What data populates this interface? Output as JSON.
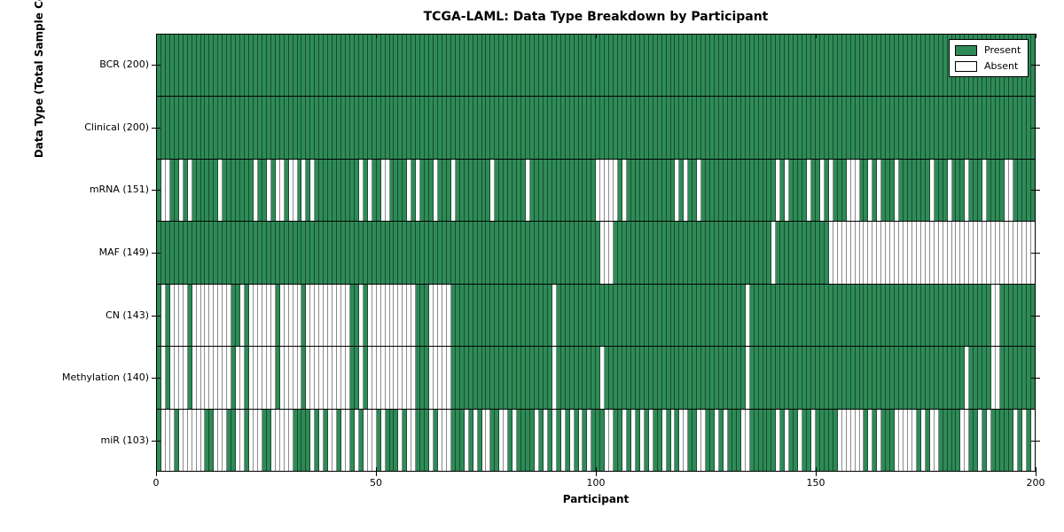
{
  "title": "TCGA-LAML: Data Type Breakdown by Participant",
  "axes": {
    "xlabel": "Participant",
    "ylabel": "Data Type (Total Sample Count)"
  },
  "legend": {
    "present_label": "Present",
    "absent_label": "Absent"
  },
  "colors": {
    "present": "#2e8b57",
    "absent": "#ffffff",
    "cell_edge": "rgba(0,0,0,0.45)",
    "spine": "#000000"
  },
  "chart_data": {
    "type": "heatmap",
    "title": "TCGA-LAML: Data Type Breakdown by Participant",
    "xlabel": "Participant",
    "ylabel": "Data Type (Total Sample Count)",
    "n_participants": 200,
    "x_range": [
      0,
      200
    ],
    "x_ticks": [
      0,
      50,
      100,
      150,
      200
    ],
    "grid": false,
    "legend_position": "upper right",
    "legend": [
      {
        "label": "Present",
        "color": "#2e8b57"
      },
      {
        "label": "Absent",
        "color": "#ffffff"
      }
    ],
    "rows": [
      {
        "name": "BCR",
        "label": "BCR (200)",
        "present_count": 200,
        "absent_participants": []
      },
      {
        "name": "Clinical",
        "label": "Clinical (200)",
        "present_count": 200,
        "absent_participants": []
      },
      {
        "name": "mRNA",
        "label": "mRNA (151)",
        "present_count": 151,
        "absent_participants": [
          1,
          2,
          5,
          7,
          14,
          22,
          25,
          27,
          28,
          30,
          31,
          33,
          35,
          46,
          48,
          51,
          52,
          57,
          59,
          63,
          67,
          76,
          84,
          100,
          101,
          102,
          103,
          104,
          106,
          118,
          120,
          123,
          141,
          143,
          148,
          151,
          153,
          157,
          158,
          159,
          162,
          164,
          168,
          176,
          180,
          184,
          188,
          193,
          194
        ]
      },
      {
        "name": "MAF",
        "label": "MAF (149)",
        "present_count": 149,
        "absent_participants": [
          101,
          102,
          103,
          140,
          153,
          154,
          155,
          156,
          157,
          158,
          159,
          160,
          161,
          162,
          163,
          164,
          165,
          166,
          167,
          168,
          169,
          170,
          171,
          172,
          173,
          174,
          175,
          176,
          177,
          178,
          179,
          180,
          181,
          182,
          183,
          184,
          185,
          186,
          187,
          188,
          189,
          190,
          191,
          192,
          193,
          194,
          195,
          196,
          197,
          198,
          199
        ]
      },
      {
        "name": "CN",
        "label": "CN (143)",
        "present_count": 143,
        "absent_participants": [
          1,
          3,
          4,
          5,
          6,
          8,
          9,
          10,
          11,
          12,
          13,
          14,
          15,
          16,
          19,
          21,
          22,
          23,
          24,
          25,
          26,
          28,
          29,
          30,
          31,
          32,
          34,
          35,
          36,
          37,
          38,
          39,
          40,
          41,
          42,
          43,
          46,
          48,
          49,
          50,
          51,
          52,
          53,
          54,
          55,
          56,
          57,
          58,
          62,
          63,
          64,
          65,
          66,
          90,
          134,
          190,
          191
        ]
      },
      {
        "name": "Methylation",
        "label": "Methylation (140)",
        "present_count": 140,
        "absent_participants": [
          1,
          3,
          4,
          5,
          6,
          8,
          9,
          10,
          11,
          12,
          13,
          14,
          15,
          16,
          18,
          19,
          21,
          22,
          23,
          24,
          25,
          26,
          28,
          29,
          30,
          31,
          32,
          34,
          35,
          36,
          37,
          38,
          39,
          40,
          41,
          42,
          43,
          46,
          48,
          49,
          50,
          51,
          52,
          53,
          54,
          55,
          56,
          57,
          58,
          62,
          63,
          64,
          65,
          66,
          90,
          101,
          134,
          184,
          190,
          191
        ]
      },
      {
        "name": "miR",
        "label": "miR (103)",
        "present_count": 103,
        "absent_participants": [
          1,
          2,
          3,
          5,
          6,
          7,
          8,
          9,
          10,
          13,
          14,
          15,
          18,
          19,
          21,
          22,
          23,
          26,
          27,
          28,
          29,
          30,
          35,
          37,
          39,
          40,
          42,
          43,
          45,
          47,
          48,
          49,
          51,
          55,
          57,
          58,
          62,
          64,
          65,
          66,
          70,
          72,
          74,
          75,
          78,
          79,
          81,
          86,
          88,
          90,
          92,
          94,
          96,
          98,
          102,
          103,
          106,
          108,
          110,
          112,
          115,
          117,
          119,
          120,
          123,
          124,
          127,
          129,
          133,
          134,
          141,
          143,
          146,
          149,
          155,
          156,
          157,
          158,
          159,
          160,
          162,
          164,
          168,
          169,
          170,
          171,
          172,
          174,
          176,
          177,
          183,
          184,
          187,
          189,
          195,
          197,
          199
        ]
      }
    ]
  }
}
